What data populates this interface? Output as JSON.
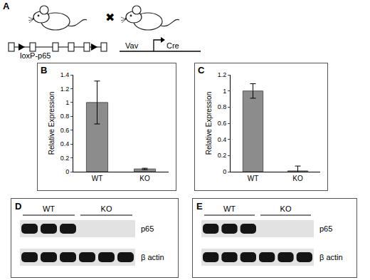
{
  "diagram": {
    "panel": "A",
    "left_mouse_label": "loxP-p65",
    "cross": "✖",
    "promoter": "Vav",
    "gene": "Cre"
  },
  "chart_data": [
    {
      "panel": "B",
      "type": "bar",
      "categories": [
        "WT",
        "KO"
      ],
      "values": [
        1.0,
        0.04
      ],
      "errors": [
        0.31,
        0.01
      ],
      "color": "#8c8c8c",
      "y_label": "Relative Expression",
      "ylim": [
        0,
        1.4
      ],
      "yticks": [
        0,
        0.2,
        0.4,
        0.6,
        0.8,
        1,
        1.2,
        1.4
      ],
      "grid": false
    },
    {
      "panel": "C",
      "type": "bar",
      "categories": [
        "WT",
        "KO"
      ],
      "values": [
        1.0,
        0.01
      ],
      "errors": [
        0.09,
        0.06
      ],
      "color": "#8c8c8c",
      "y_label": "Relative Expression",
      "ylim": [
        0,
        1.2
      ],
      "yticks": [
        0,
        0.2,
        0.4,
        0.6,
        0.8,
        1,
        1.2
      ],
      "grid": false
    }
  ],
  "blots": [
    {
      "panel": "D",
      "groups": [
        {
          "label": "WT",
          "lanes": 3
        },
        {
          "label": "KO",
          "lanes": 3
        }
      ],
      "rows": [
        {
          "label": "p65",
          "bands": [
            true,
            true,
            true,
            false,
            false,
            false
          ]
        },
        {
          "label": "β actin",
          "bands": [
            true,
            true,
            true,
            true,
            true,
            true
          ]
        }
      ]
    },
    {
      "panel": "E",
      "groups": [
        {
          "label": "WT",
          "lanes": 3
        },
        {
          "label": "KO",
          "lanes": 3
        }
      ],
      "rows": [
        {
          "label": "p65",
          "bands": [
            true,
            true,
            true,
            false,
            false,
            false
          ]
        },
        {
          "label": "β actin",
          "bands": [
            true,
            true,
            true,
            true,
            true,
            true
          ]
        }
      ]
    }
  ]
}
